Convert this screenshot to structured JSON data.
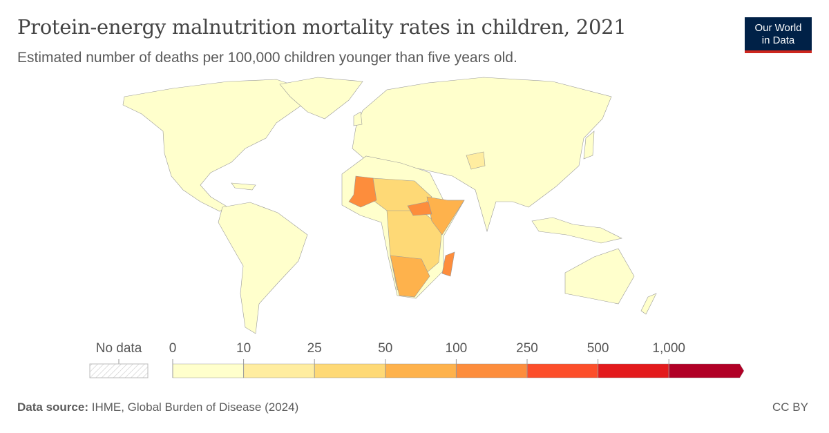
{
  "header": {
    "title": "Protein-energy malnutrition mortality rates in children, 2021",
    "subtitle": "Estimated number of deaths per 100,000 children younger than five years old.",
    "logo_line1": "Our World",
    "logo_line2": "in Data"
  },
  "legend": {
    "no_data_label": "No data",
    "thresholds": [
      "0",
      "10",
      "25",
      "50",
      "100",
      "250",
      "500",
      "1,000"
    ],
    "bin_colors": [
      "#ffffcc",
      "#ffeda0",
      "#fed976",
      "#feb24c",
      "#fd8d3c",
      "#fc4e2a",
      "#e31a1c",
      "#b10026"
    ]
  },
  "map": {
    "type": "choropleth",
    "year": "2021",
    "no_data_color": "#e0e0e0"
  },
  "footer": {
    "source_label": "Data source:",
    "source_text": "IHME, Global Burden of Disease (2024)",
    "license": "CC BY"
  }
}
